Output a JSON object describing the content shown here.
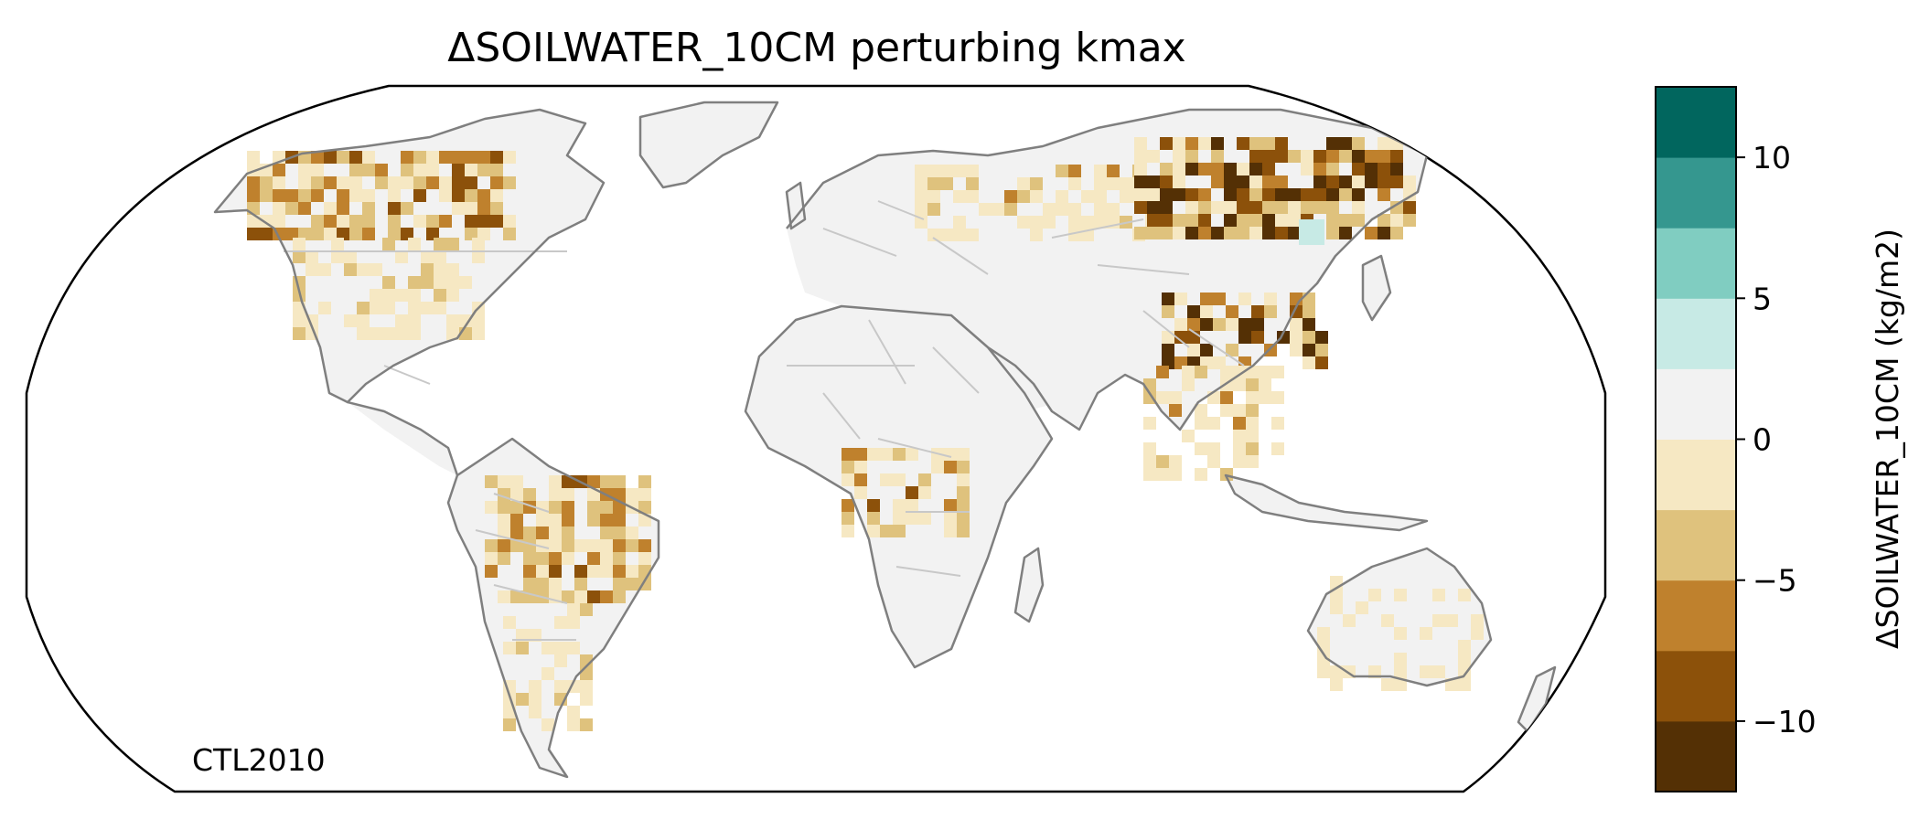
{
  "title": "ΔSOILWATER_10CM perturbing kmax",
  "annotation": "CTL2010",
  "colorbar": {
    "label": "ΔSOILWATER_10CM (kg/m2)",
    "range": [
      -12.5,
      12.5
    ],
    "levels": [
      -12.5,
      -10,
      -7.5,
      -5,
      -2.5,
      0,
      2.5,
      5,
      7.5,
      10,
      12.5
    ],
    "colors": [
      "#543005",
      "#8c510a",
      "#bf812d",
      "#dfc27d",
      "#f6e8c3",
      "#f2f2f2",
      "#c7eae5",
      "#80cdc1",
      "#35978f",
      "#01665e",
      "#003c30"
    ],
    "ticks": [
      {
        "value": 10,
        "label": "10"
      },
      {
        "value": 5,
        "label": "5"
      },
      {
        "value": 0,
        "label": "0"
      },
      {
        "value": -5,
        "label": "−5"
      },
      {
        "value": -10,
        "label": "−10"
      }
    ]
  },
  "colors": {
    "land": "#f2f2f2",
    "coastline": "#7f7f7f",
    "borders": "#c8c8c8",
    "frame": "#000000"
  }
}
